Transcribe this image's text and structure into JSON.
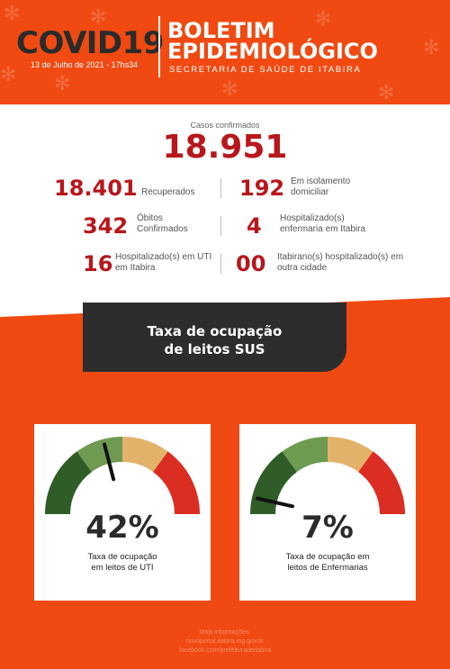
{
  "header": {
    "logo_text": "COVID19",
    "date_text": "13 de Julho de 2021 - 17hs34",
    "title_line1": "BOLETIM",
    "title_line2": "EPIDEMIOLÓGICO",
    "subtitle": "SECRETARIA DE SAÚDE DE ITABIRA"
  },
  "confirmed": {
    "label": "Casos confirmados",
    "value": "18.951"
  },
  "stats": [
    {
      "value": "18.401",
      "label": "Recuperados"
    },
    {
      "value": "192",
      "label": "Em isolamento domiciliar"
    },
    {
      "value": "342",
      "label": "Óbitos Confirmados"
    },
    {
      "value": "4",
      "label": "Hospitalizado(s) enfermaria em Itabira"
    },
    {
      "value": "16",
      "label": "Hospitalizado(s) em UTI em Itabira"
    },
    {
      "value": "00",
      "label": "Itabirano(s) hospitalizado(s) em outra cidade"
    }
  ],
  "occupancy": {
    "title_line1": "Taxa de ocupação",
    "title_line2": "de leitos SUS",
    "uti": {
      "percent_text": "42%",
      "value": 0.42,
      "caption_line1": "Taxa de ocupação",
      "caption_line2": "em leitos de UTI"
    },
    "enfermaria": {
      "percent_text": "7%",
      "value": 0.07,
      "caption_line1": "Taxa de ocupação em",
      "caption_line2": "leitos de Enfermarias"
    }
  },
  "gauge_colors": [
    "#2f5c27",
    "#6e9a52",
    "#e3b26a",
    "#dc2d23"
  ],
  "colors": {
    "orange": "#f04a12",
    "dark": "#2d2d2d",
    "accent_red": "#b8171b"
  },
  "footer": {
    "line1": "Mais informações:",
    "line2": "novoportal.itabira.mg.gov.br",
    "line3": "facebook.com/prefeituradeitabira"
  }
}
